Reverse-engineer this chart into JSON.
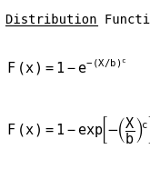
{
  "title": "Distribution Function",
  "bg_color": "#ffffff",
  "text_color": "#000000",
  "title_fontsize": 10,
  "eq_fontsize": 11,
  "fig_width": 1.65,
  "fig_height": 1.97,
  "dpi": 100
}
